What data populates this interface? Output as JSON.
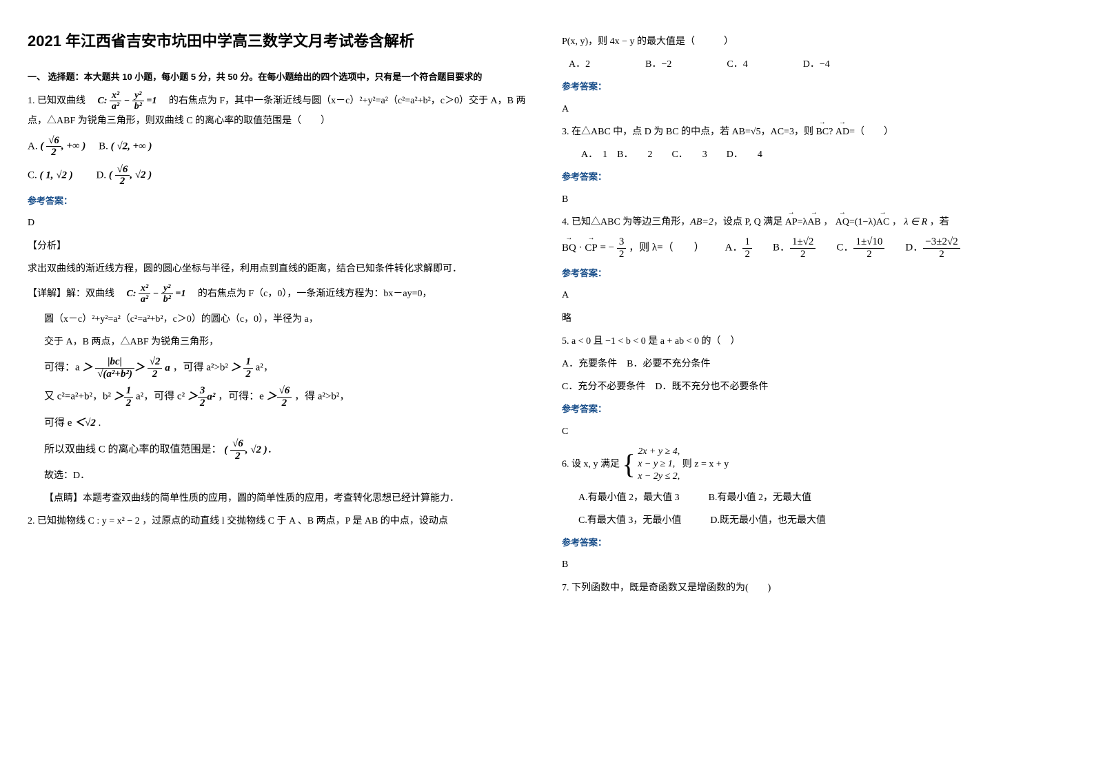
{
  "title": "2021 年江西省吉安市坑田中学高三数学文月考试卷含解析",
  "section1": "一、 选择题：本大题共 10 小题，每小题 5 分，共 50 分。在每小题给出的四个选项中，只有是一个符合题目要求的",
  "q1": {
    "prefix": "1. 已知双曲线",
    "mid": "的右焦点为 F，其中一条渐近线与圆（x－c）²+y²=a²（c²=a²+b²，c＞0）交于 A，B 两点，△ABF 为锐角三角形，则双曲线 C 的离心率的取值范围是（　　）",
    "ans_head": "参考答案：",
    "ans": "D",
    "analysis_head": "【分析】",
    "analysis": "求出双曲线的渐近线方程，圆的圆心坐标与半径，利用点到直线的距离，结合已知条件转化求解即可．",
    "detail_head": "【详解】解：双曲线",
    "detail1": "的右焦点为 F（c，0），一条渐近线方程为：bx－ay=0，",
    "detail2": "圆（x－c）²+y²=a²（c²=a²+b²，c＞0）的圆心（c，0），半径为 a，",
    "detail3": "交于 A，B 两点，△ABF 为锐角三角形，",
    "detail4": "可得：a",
    "detail5": "，可得 a²>b²",
    "detail5b": "a²，",
    "detail6": "又 c²=a²+b²，b²",
    "detail6b": "a²，可得 c²",
    "detail6c": "，可得：e",
    "detail6d": "，得 a²>b²，",
    "detail7": "可得 e",
    "detail8": "所以双曲线 C 的离心率的取值范围是：",
    "detail9": "故选：D．",
    "comment": "【点睛】本题考查双曲线的简单性质的应用，圆的简单性质的应用，考查转化思想已经计算能力．"
  },
  "q2": "2. 已知抛物线 C : y = x² − 2 ，过原点的动直线 l 交抛物线 C 于 A 、B 两点，P 是 AB 的中点，设动点",
  "q2b": "P(x, y)，则 4x − y 的最大值是（　　　）",
  "q2_opts": {
    "a": "A．2",
    "b": "B．−2",
    "c": "C．4",
    "d": "D．−4"
  },
  "q2_ans_head": "参考答案：",
  "q2_ans": "A",
  "q3": "3. 在△ABC 中，点 D 为 BC 的中点，若 AB=√5，AC=3，则 BC · AD=（　　）",
  "q3_opts": "　　A．　1　B．　　2　　C．　　3　　D．　　4",
  "q3_ans_head": "参考答案：",
  "q3_ans": "B",
  "q4": "4. 已知△ABC 为等边三角形，AB=2，设点 P, Q 满足 AP=λAB ，AQ=(1−λ)AC ，λ ∈ R ，若",
  "q4b": "BQ · CP = −",
  "q4c": "，则 λ=（　　）A．",
  "q4_ans_head": "参考答案：",
  "q4_ans": "A",
  "q4_ans2": "略",
  "q5": "5. a < 0 且 −1 < b < 0 是 a + ab < 0 的（　）",
  "q5_opts": {
    "a": "A．充要条件　B．必要不充分条件",
    "c": "C．充分不必要条件　D．既不充分也不必要条件"
  },
  "q5_ans_head": "参考答案：",
  "q5_ans": "C",
  "q6": "6. 设 x, y 满足",
  "q6b": "则 z = x + y",
  "q6_opts": {
    "a": "A.有最小值 2，最大值 3　　　B.有最小值 2，无最大值",
    "c": "C.有最大值 3，无最小值　　　D.既无最小值，也无最大值"
  },
  "q6_ans_head": "参考答案：",
  "q6_ans": "B",
  "q7": "7. 下列函数中，既是奇函数又是增函数的为(　　)"
}
